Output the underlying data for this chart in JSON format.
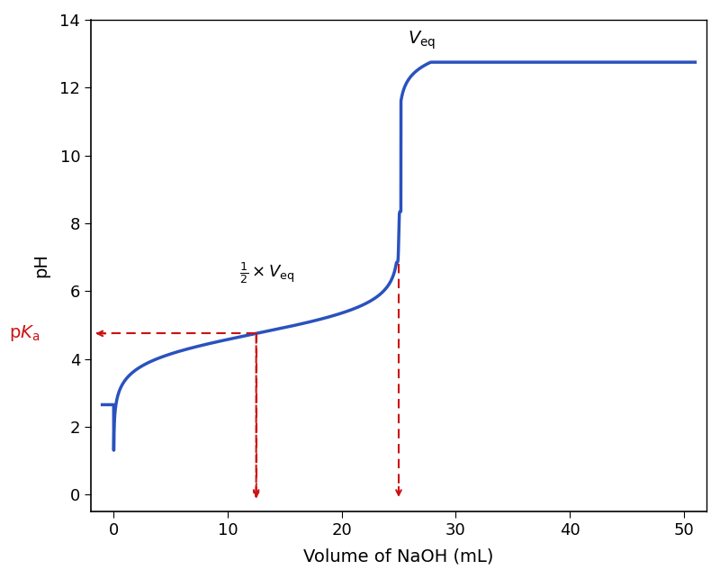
{
  "title": "",
  "xlabel": "Volume of NaOH (mL)",
  "ylabel": "pH",
  "xlim": [
    -2,
    52
  ],
  "ylim": [
    -0.5,
    14
  ],
  "yticks": [
    0,
    2,
    4,
    6,
    8,
    10,
    12,
    14
  ],
  "xticks": [
    0,
    10,
    20,
    30,
    40,
    50
  ],
  "curve_color": "#2A52BE",
  "dashed_color": "#CC1111",
  "pka": 4.75,
  "v_half": 12.5,
  "v_eq": 25.0,
  "start_ph": 2.65,
  "end_ph": 12.75,
  "figsize": [
    8.0,
    6.43
  ],
  "dpi": 100,
  "annotation_veq": "V_eq",
  "annotation_vhalf": "½×V_eq",
  "annotation_pka": "pK_a"
}
